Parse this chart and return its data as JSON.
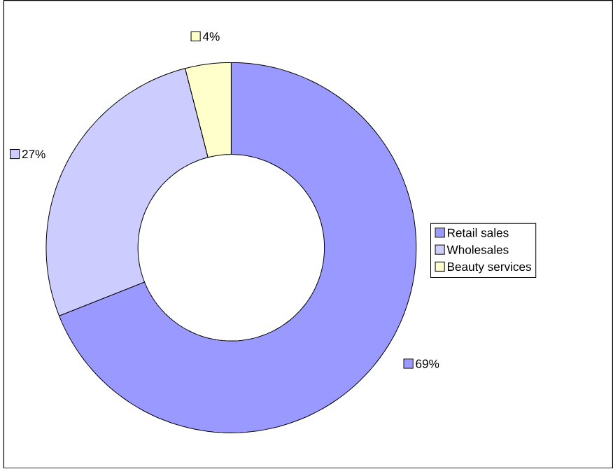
{
  "chart_data": {
    "type": "donut",
    "categories": [
      "Retail sales",
      "Wholesales",
      "Beauty services"
    ],
    "values": [
      69,
      27,
      4
    ],
    "colors": [
      "#9999ff",
      "#ccccff",
      "#ffffcc"
    ],
    "value_labels": [
      "69%",
      "27%",
      "4%"
    ],
    "legend": "right"
  }
}
